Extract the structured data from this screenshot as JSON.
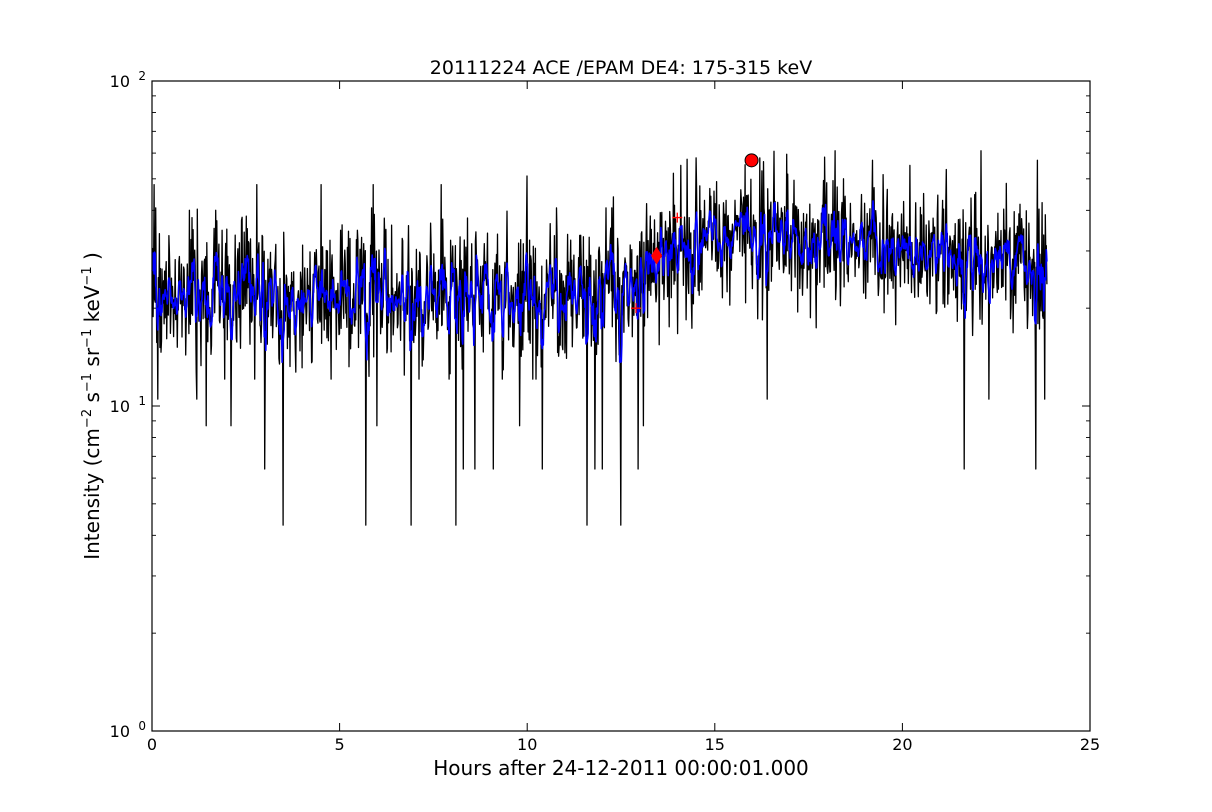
{
  "chart_data": {
    "type": "line",
    "title": "20111224 ACE /EPAM DE4: 175-315 keV",
    "xlabel": "Hours after 24-12-2011 00:00:01.000",
    "ylabel": {
      "prefix": "Intensity (cm",
      "exp1": "−2",
      "mid1": " s",
      "exp2": "−1",
      "mid2": " sr",
      "exp3": "−1",
      "mid3": " keV",
      "exp4": "−1",
      "suffix": " )"
    },
    "xlim": [
      0,
      25
    ],
    "ylim": [
      1,
      100
    ],
    "yscale": "log",
    "grid": false,
    "x_ticks": [
      0,
      5,
      10,
      15,
      20,
      25
    ],
    "x_tick_labels": [
      "0",
      "5",
      "10",
      "15",
      "20",
      "25"
    ],
    "y_ticks": [
      1,
      10,
      100
    ],
    "y_tick_labels": [
      {
        "base": "10",
        "exp": "0"
      },
      {
        "base": "10",
        "exp": "1"
      },
      {
        "base": "10",
        "exp": "2"
      }
    ],
    "series": [
      {
        "color": "#000000",
        "x_range": [
          0,
          23.85
        ],
        "level_profile": [
          {
            "x": 0,
            "y": 22
          },
          {
            "x": 12.5,
            "y": 22
          },
          {
            "x": 13.0,
            "y": 26
          },
          {
            "x": 14.5,
            "y": 32
          },
          {
            "x": 15.5,
            "y": 35
          },
          {
            "x": 17.0,
            "y": 32
          },
          {
            "x": 19.0,
            "y": 31
          },
          {
            "x": 21.0,
            "y": 29
          },
          {
            "x": 23.85,
            "y": 27
          }
        ],
        "spikes_down": [
          {
            "x": 0.15,
            "y": 10.5
          },
          {
            "x": 1.2,
            "y": 10.5
          },
          {
            "x": 1.45,
            "y": 8.7
          },
          {
            "x": 2.1,
            "y": 8.7
          },
          {
            "x": 2.8,
            "y": 6.4
          },
          {
            "x": 3.0,
            "y": 6.4
          },
          {
            "x": 3.5,
            "y": 4.3
          },
          {
            "x": 4.5,
            "y": 8.7
          },
          {
            "x": 5.7,
            "y": 4.3
          },
          {
            "x": 6.0,
            "y": 8.7
          },
          {
            "x": 6.9,
            "y": 4.3
          },
          {
            "x": 7.7,
            "y": 8.7
          },
          {
            "x": 8.1,
            "y": 4.3
          },
          {
            "x": 8.3,
            "y": 6.4
          },
          {
            "x": 8.6,
            "y": 6.4
          },
          {
            "x": 9.1,
            "y": 6.4
          },
          {
            "x": 9.8,
            "y": 8.7
          },
          {
            "x": 10.4,
            "y": 6.4
          },
          {
            "x": 11.6,
            "y": 4.3
          },
          {
            "x": 11.8,
            "y": 6.4
          },
          {
            "x": 12.0,
            "y": 6.4
          },
          {
            "x": 12.5,
            "y": 4.3
          },
          {
            "x": 12.95,
            "y": 6.4
          },
          {
            "x": 13.1,
            "y": 8.7
          },
          {
            "x": 16.4,
            "y": 10.5
          },
          {
            "x": 21.65,
            "y": 6.4
          },
          {
            "x": 22.3,
            "y": 10.5
          },
          {
            "x": 23.55,
            "y": 6.4
          },
          {
            "x": 23.8,
            "y": 10.5
          }
        ],
        "spikes_up": [
          {
            "x": 0.05,
            "y": 48
          },
          {
            "x": 1.0,
            "y": 40
          },
          {
            "x": 1.7,
            "y": 40
          },
          {
            "x": 2.8,
            "y": 48
          },
          {
            "x": 4.5,
            "y": 48
          },
          {
            "x": 5.9,
            "y": 48
          },
          {
            "x": 7.7,
            "y": 48
          },
          {
            "x": 10.0,
            "y": 51
          },
          {
            "x": 12.3,
            "y": 44
          },
          {
            "x": 13.9,
            "y": 52
          },
          {
            "x": 14.5,
            "y": 58
          },
          {
            "x": 16.2,
            "y": 58
          },
          {
            "x": 18.2,
            "y": 61
          },
          {
            "x": 19.2,
            "y": 57
          },
          {
            "x": 20.2,
            "y": 55
          },
          {
            "x": 22.1,
            "y": 61
          },
          {
            "x": 23.6,
            "y": 57
          }
        ]
      },
      {
        "color": "#0000ff",
        "smoothed": true,
        "x_range": [
          0,
          23.85
        ],
        "level_profile": [
          {
            "x": 0,
            "y": 22
          },
          {
            "x": 12.5,
            "y": 22
          },
          {
            "x": 13.0,
            "y": 26
          },
          {
            "x": 14.5,
            "y": 32
          },
          {
            "x": 15.5,
            "y": 35
          },
          {
            "x": 17.0,
            "y": 32
          },
          {
            "x": 19.0,
            "y": 31
          },
          {
            "x": 21.0,
            "y": 29
          },
          {
            "x": 23.85,
            "y": 27
          }
        ]
      }
    ],
    "markers": [
      {
        "shape": "circle",
        "x": 15.98,
        "y": 57,
        "color": "#ff0000"
      },
      {
        "shape": "diamond",
        "x": 13.45,
        "y": 29,
        "color": "#ff0000"
      },
      {
        "shape": "plus",
        "x": 12.9,
        "y": 20,
        "color": "#ff0000"
      },
      {
        "shape": "plus",
        "x": 14.0,
        "y": 38,
        "color": "#ff0000"
      }
    ]
  }
}
